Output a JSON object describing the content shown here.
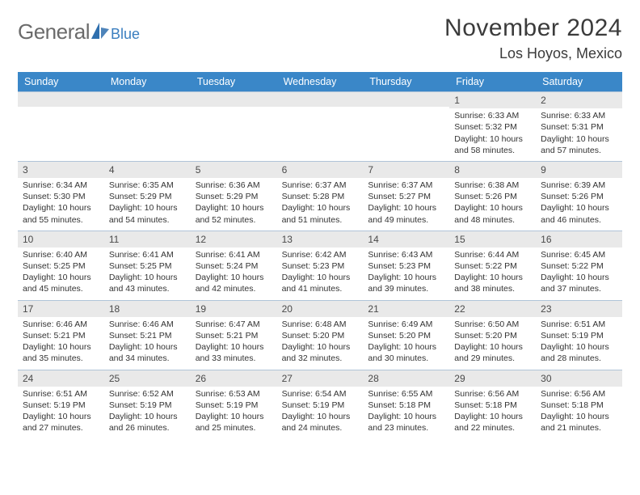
{
  "brand": {
    "name_part1": "General",
    "name_part2": "Blue",
    "text_color": "#6b6b6b",
    "accent_color": "#2f6fae",
    "sub_color": "#3a7ebf"
  },
  "header": {
    "month_title": "November 2024",
    "location": "Los Hoyos, Mexico"
  },
  "styling": {
    "header_bg": "#3a87c8",
    "header_text": "#ffffff",
    "daynum_bg": "#e9e9e9",
    "border_color": "#b0c4d8",
    "body_text": "#333333",
    "page_bg": "#ffffff",
    "title_fontsize": 30,
    "location_fontsize": 18,
    "dayname_fontsize": 12.5,
    "cell_fontsize": 10.5
  },
  "day_names": [
    "Sunday",
    "Monday",
    "Tuesday",
    "Wednesday",
    "Thursday",
    "Friday",
    "Saturday"
  ],
  "calendar": {
    "type": "table",
    "blank_leading": 5,
    "days": [
      {
        "n": 1,
        "sunrise": "6:33 AM",
        "sunset": "5:32 PM",
        "daylight": "10 hours and 58 minutes."
      },
      {
        "n": 2,
        "sunrise": "6:33 AM",
        "sunset": "5:31 PM",
        "daylight": "10 hours and 57 minutes."
      },
      {
        "n": 3,
        "sunrise": "6:34 AM",
        "sunset": "5:30 PM",
        "daylight": "10 hours and 55 minutes."
      },
      {
        "n": 4,
        "sunrise": "6:35 AM",
        "sunset": "5:29 PM",
        "daylight": "10 hours and 54 minutes."
      },
      {
        "n": 5,
        "sunrise": "6:36 AM",
        "sunset": "5:29 PM",
        "daylight": "10 hours and 52 minutes."
      },
      {
        "n": 6,
        "sunrise": "6:37 AM",
        "sunset": "5:28 PM",
        "daylight": "10 hours and 51 minutes."
      },
      {
        "n": 7,
        "sunrise": "6:37 AM",
        "sunset": "5:27 PM",
        "daylight": "10 hours and 49 minutes."
      },
      {
        "n": 8,
        "sunrise": "6:38 AM",
        "sunset": "5:26 PM",
        "daylight": "10 hours and 48 minutes."
      },
      {
        "n": 9,
        "sunrise": "6:39 AM",
        "sunset": "5:26 PM",
        "daylight": "10 hours and 46 minutes."
      },
      {
        "n": 10,
        "sunrise": "6:40 AM",
        "sunset": "5:25 PM",
        "daylight": "10 hours and 45 minutes."
      },
      {
        "n": 11,
        "sunrise": "6:41 AM",
        "sunset": "5:25 PM",
        "daylight": "10 hours and 43 minutes."
      },
      {
        "n": 12,
        "sunrise": "6:41 AM",
        "sunset": "5:24 PM",
        "daylight": "10 hours and 42 minutes."
      },
      {
        "n": 13,
        "sunrise": "6:42 AM",
        "sunset": "5:23 PM",
        "daylight": "10 hours and 41 minutes."
      },
      {
        "n": 14,
        "sunrise": "6:43 AM",
        "sunset": "5:23 PM",
        "daylight": "10 hours and 39 minutes."
      },
      {
        "n": 15,
        "sunrise": "6:44 AM",
        "sunset": "5:22 PM",
        "daylight": "10 hours and 38 minutes."
      },
      {
        "n": 16,
        "sunrise": "6:45 AM",
        "sunset": "5:22 PM",
        "daylight": "10 hours and 37 minutes."
      },
      {
        "n": 17,
        "sunrise": "6:46 AM",
        "sunset": "5:21 PM",
        "daylight": "10 hours and 35 minutes."
      },
      {
        "n": 18,
        "sunrise": "6:46 AM",
        "sunset": "5:21 PM",
        "daylight": "10 hours and 34 minutes."
      },
      {
        "n": 19,
        "sunrise": "6:47 AM",
        "sunset": "5:21 PM",
        "daylight": "10 hours and 33 minutes."
      },
      {
        "n": 20,
        "sunrise": "6:48 AM",
        "sunset": "5:20 PM",
        "daylight": "10 hours and 32 minutes."
      },
      {
        "n": 21,
        "sunrise": "6:49 AM",
        "sunset": "5:20 PM",
        "daylight": "10 hours and 30 minutes."
      },
      {
        "n": 22,
        "sunrise": "6:50 AM",
        "sunset": "5:20 PM",
        "daylight": "10 hours and 29 minutes."
      },
      {
        "n": 23,
        "sunrise": "6:51 AM",
        "sunset": "5:19 PM",
        "daylight": "10 hours and 28 minutes."
      },
      {
        "n": 24,
        "sunrise": "6:51 AM",
        "sunset": "5:19 PM",
        "daylight": "10 hours and 27 minutes."
      },
      {
        "n": 25,
        "sunrise": "6:52 AM",
        "sunset": "5:19 PM",
        "daylight": "10 hours and 26 minutes."
      },
      {
        "n": 26,
        "sunrise": "6:53 AM",
        "sunset": "5:19 PM",
        "daylight": "10 hours and 25 minutes."
      },
      {
        "n": 27,
        "sunrise": "6:54 AM",
        "sunset": "5:19 PM",
        "daylight": "10 hours and 24 minutes."
      },
      {
        "n": 28,
        "sunrise": "6:55 AM",
        "sunset": "5:18 PM",
        "daylight": "10 hours and 23 minutes."
      },
      {
        "n": 29,
        "sunrise": "6:56 AM",
        "sunset": "5:18 PM",
        "daylight": "10 hours and 22 minutes."
      },
      {
        "n": 30,
        "sunrise": "6:56 AM",
        "sunset": "5:18 PM",
        "daylight": "10 hours and 21 minutes."
      }
    ]
  },
  "labels": {
    "sunrise": "Sunrise:",
    "sunset": "Sunset:",
    "daylight": "Daylight:"
  }
}
